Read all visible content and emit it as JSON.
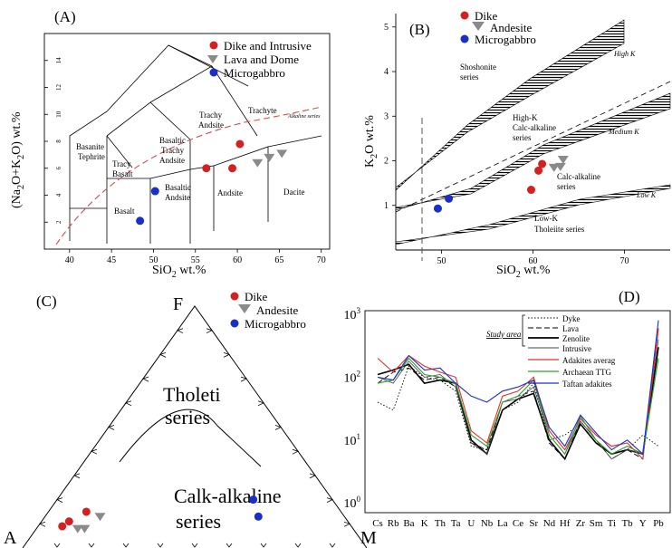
{
  "panels": {
    "a": "(A)",
    "b": "(B)",
    "c": "(C)",
    "d": "(D)"
  },
  "legend": {
    "a": [
      "Dike and Intrusive",
      "Lava and Dome",
      "Microgabbro"
    ],
    "b": [
      "Dike",
      "Andesite",
      "Microgabbro"
    ],
    "c": [
      "Dike",
      "Andesite",
      "Microgabbro"
    ],
    "d_bracket": "Study area",
    "d": [
      "Dyke",
      "Lava",
      "Zenolite",
      "Intrusive",
      "Adakites averag",
      "Archaean TTG",
      "Taftan adakites"
    ]
  },
  "tas_fields": {
    "basanite1": "Basanite",
    "basanite2": "Tephrite",
    "tbasalt1": "Tracy",
    "tbasalt2": "Basalt",
    "btandesite1": "Basaltic",
    "btandesite2": "Trachy",
    "btandesite3": "Andsite",
    "tandesite1": "Trachy",
    "tandesite2": "Andsite",
    "trachyte": "Trachyte",
    "alkaline": "Alkaline series",
    "basalt": "Basalt",
    "bandesite1": "Basaltic",
    "bandesite2": "Andsite",
    "andesite": "Andsite",
    "dacite": "Dacite"
  },
  "k2o_fields": {
    "shoshonite1": "Shoshonite",
    "shoshonite2": "series",
    "highk1": "High-K",
    "highk2": "Calc-alkaline",
    "highk3": "series",
    "calc1": "Calc-alkaline",
    "calc2": "series",
    "lowk1": "Low-K",
    "lowk2": "Tholeiite series",
    "band_high": "High K",
    "band_medium": "Medium K",
    "band_low": "Low K"
  },
  "afm": {
    "apex_f": "F",
    "apex_a": "A",
    "apex_m": "M",
    "thol1": "Tholeti",
    "thol2": "series",
    "calc1": "Calk-alkaline",
    "calc2": "series"
  },
  "colors": {
    "dike": "#d42020",
    "andesite": "#8a8a8a",
    "microgabbro": "#1a2fc8",
    "dashed_red": "#d05050",
    "adakite": "#e03030",
    "ttg": "#30a030",
    "taftan": "#2030c0"
  },
  "chart_data": [
    {
      "type": "scatter",
      "title": "(A)",
      "xlabel": "SiO2 wt.%",
      "ylabel": "(Na2O+K2O) wt.%",
      "xlim": [
        37,
        71
      ],
      "ylim": [
        0,
        16
      ],
      "xticks": [
        40,
        45,
        50,
        55,
        60,
        65,
        70
      ],
      "yticks": [
        2,
        4,
        6,
        8,
        10,
        12,
        14
      ],
      "grid": false,
      "legend": "top-right",
      "series": [
        {
          "name": "Dike and Intrusive",
          "points": [
            [
              56.3,
              6.0
            ],
            [
              59.4,
              6.0
            ],
            [
              60.3,
              7.8
            ]
          ]
        },
        {
          "name": "Lava and Dome",
          "points": [
            [
              62.4,
              6.4
            ],
            [
              63.8,
              6.8
            ],
            [
              65.3,
              7.1
            ]
          ]
        },
        {
          "name": "Microgabbro",
          "points": [
            [
              48.4,
              2.1
            ],
            [
              50.2,
              4.3
            ]
          ]
        }
      ]
    },
    {
      "type": "scatter",
      "title": "(B)",
      "xlabel": "SiO2 wt.%",
      "ylabel": "K2O wt.%",
      "xlim": [
        45,
        75
      ],
      "ylim": [
        0,
        5.3
      ],
      "xticks": [
        50,
        60,
        70
      ],
      "yticks": [
        1,
        2,
        3,
        4,
        5
      ],
      "grid": false,
      "legend": "top-left",
      "series": [
        {
          "name": "Dike",
          "points": [
            [
              59.8,
              1.35
            ],
            [
              60.6,
              1.78
            ],
            [
              61.0,
              1.93
            ]
          ]
        },
        {
          "name": "Andesite",
          "points": [
            [
              62.3,
              1.85
            ],
            [
              63.0,
              1.87
            ],
            [
              63.3,
              2.03
            ]
          ]
        },
        {
          "name": "Microgabbro",
          "points": [
            [
              49.6,
              0.93
            ],
            [
              50.8,
              1.15
            ]
          ]
        }
      ]
    },
    {
      "type": "scatter",
      "title": "(C)",
      "xlabel": "",
      "ylabel": "",
      "grid": false,
      "legend": "top-right",
      "series": [
        {
          "name": "Dike",
          "points": [
            [
              0.07,
              0.09
            ],
            [
              0.08,
              0.11
            ],
            [
              0.11,
              0.15
            ]
          ]
        },
        {
          "name": "Andesite",
          "points": [
            [
              0.12,
              0.08
            ],
            [
              0.14,
              0.08
            ],
            [
              0.16,
              0.13
            ]
          ]
        },
        {
          "name": "Microgabbro",
          "points": [
            [
              0.57,
              0.2
            ],
            [
              0.62,
              0.13
            ]
          ]
        }
      ]
    },
    {
      "type": "line",
      "title": "(D)",
      "xlabel": "",
      "ylabel": "",
      "yscale": "log",
      "ylim": [
        0.7,
        1000
      ],
      "yticks": [
        1,
        10,
        100,
        1000
      ],
      "legend": "top-right",
      "categories": [
        "Cs",
        "Rb",
        "Ba",
        "K",
        "Th",
        "Ta",
        "U",
        "Nb",
        "La",
        "Ce",
        "Sr",
        "Nd",
        "Hf",
        "Zr",
        "Sm",
        "Ti",
        "Tb",
        "Y",
        "Pb"
      ],
      "series": [
        {
          "name": "Dyke",
          "values": [
            40,
            30,
            150,
            100,
            90,
            60,
            8,
            7,
            30,
            40,
            80,
            10,
            12,
            18,
            9,
            6,
            7,
            12,
            8
          ]
        },
        {
          "name": "Lava",
          "values": [
            80,
            120,
            140,
            90,
            100,
            70,
            9,
            7,
            40,
            50,
            60,
            9,
            5,
            20,
            10,
            5,
            7,
            5,
            600
          ]
        },
        {
          "name": "Zenolite",
          "values": [
            110,
            130,
            160,
            80,
            90,
            80,
            10,
            6,
            30,
            45,
            55,
            10,
            5,
            18,
            9,
            6,
            7,
            6,
            300
          ]
        },
        {
          "name": "Intrusive",
          "values": [
            100,
            80,
            180,
            100,
            110,
            70,
            9,
            6,
            40,
            45,
            70,
            12,
            6,
            20,
            10,
            5,
            7,
            6,
            400
          ]
        },
        {
          "name": "Adakites averag",
          "values": [
            200,
            120,
            220,
            150,
            120,
            100,
            14,
            9,
            50,
            60,
            100,
            14,
            7,
            22,
            12,
            8,
            9,
            5,
            600
          ]
        },
        {
          "name": "Archaean TTG",
          "values": [
            80,
            90,
            200,
            110,
            100,
            80,
            12,
            8,
            40,
            50,
            90,
            12,
            6,
            24,
            10,
            6,
            8,
            6,
            200
          ]
        },
        {
          "name": "Taftan adakites",
          "values": [
            100,
            90,
            220,
            130,
            140,
            80,
            50,
            40,
            60,
            70,
            90,
            16,
            8,
            25,
            13,
            7,
            10,
            6,
            800
          ]
        }
      ]
    }
  ]
}
